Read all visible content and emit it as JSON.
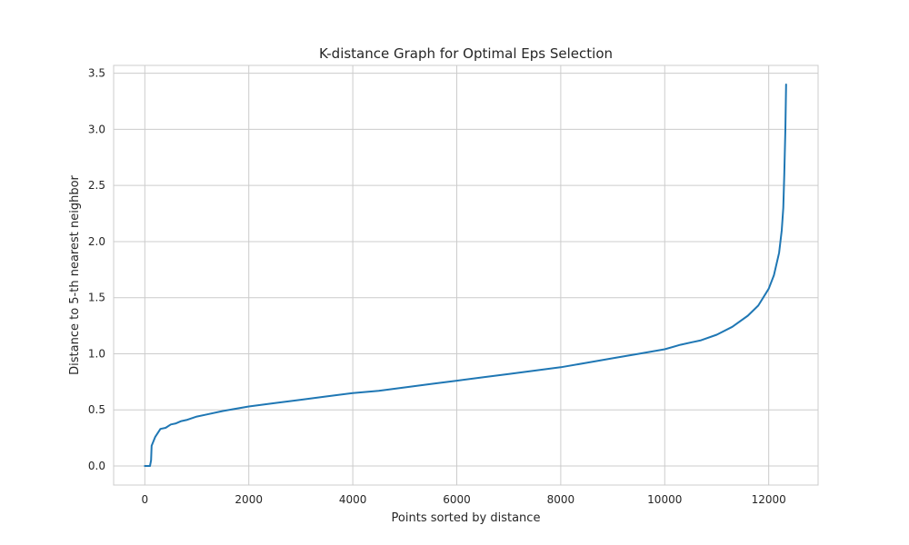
{
  "chart_data": {
    "type": "line",
    "title": "K-distance Graph for Optimal Eps Selection",
    "xlabel": "Points sorted by distance",
    "ylabel": "Distance to 5-th nearest neighbor",
    "xlim": [
      -600,
      12950
    ],
    "ylim": [
      -0.17,
      3.57
    ],
    "xticks": [
      0,
      2000,
      4000,
      6000,
      8000,
      10000,
      12000
    ],
    "xtick_labels": [
      "0",
      "2000",
      "4000",
      "6000",
      "8000",
      "10000",
      "12000"
    ],
    "yticks": [
      0.0,
      0.5,
      1.0,
      1.5,
      2.0,
      2.5,
      3.0,
      3.5
    ],
    "ytick_labels": [
      "0.0",
      "0.5",
      "1.0",
      "1.5",
      "2.0",
      "2.5",
      "3.0",
      "3.5"
    ],
    "grid": true,
    "series": [
      {
        "color": "#1f77b4",
        "x": [
          0,
          100,
          120,
          130,
          200,
          300,
          400,
          500,
          600,
          700,
          800,
          1000,
          1200,
          1500,
          2000,
          2500,
          3000,
          3500,
          4000,
          4500,
          5000,
          5500,
          6000,
          6500,
          7000,
          7500,
          8000,
          8500,
          9000,
          9500,
          10000,
          10300,
          10700,
          11000,
          11300,
          11600,
          11800,
          12000,
          12100,
          12200,
          12250,
          12280,
          12300,
          12320,
          12330,
          12335
        ],
        "y": [
          0.0,
          0.0,
          0.05,
          0.18,
          0.26,
          0.33,
          0.34,
          0.37,
          0.38,
          0.4,
          0.41,
          0.44,
          0.46,
          0.49,
          0.53,
          0.56,
          0.59,
          0.62,
          0.65,
          0.67,
          0.7,
          0.73,
          0.76,
          0.79,
          0.82,
          0.85,
          0.88,
          0.92,
          0.96,
          1.0,
          1.04,
          1.08,
          1.12,
          1.17,
          1.24,
          1.34,
          1.43,
          1.58,
          1.7,
          1.9,
          2.1,
          2.3,
          2.6,
          3.0,
          3.25,
          3.4
        ]
      }
    ]
  }
}
